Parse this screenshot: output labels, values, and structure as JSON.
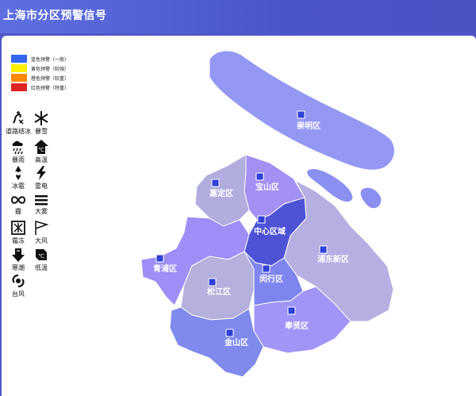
{
  "header": {
    "title": "上海市分区预警信号"
  },
  "legend": [
    {
      "label": "蓝色预警（一般）",
      "color": "#3366ee"
    },
    {
      "label": "黄色预警（较强）",
      "color": "#ffee00"
    },
    {
      "label": "橙色预警（较重）",
      "color": "#ff8800"
    },
    {
      "label": "红色预警（特重）",
      "color": "#dd2222"
    }
  ],
  "warning_types": {
    "road_ice": "道路结冰",
    "blizzard": "暴雪",
    "rainstorm": "暴雨",
    "heat": "高温",
    "hail": "冰雹",
    "thunder": "雷电",
    "haze": "霾",
    "fog": "大雾",
    "frost": "霜冻",
    "wind": "大风",
    "cold_wave": "寒潮",
    "low_temp": "低温",
    "typhoon": "台风"
  },
  "districts": {
    "chongming": {
      "name": "崇明区",
      "color": "#9498f3"
    },
    "jiading": {
      "name": "嘉定区",
      "color": "#b2addf"
    },
    "baoshan": {
      "name": "宝山区",
      "color": "#a48ff2"
    },
    "center": {
      "name": "中心区域",
      "color": "#4e53d6"
    },
    "pudong": {
      "name": "浦东新区",
      "color": "#b6b0e2"
    },
    "qingpu": {
      "name": "青浦区",
      "color": "#9d8ff5"
    },
    "songjiang": {
      "name": "松江区",
      "color": "#b5b0dc"
    },
    "minhang": {
      "name": "闵行区",
      "color": "#7f85ee"
    },
    "fengxian": {
      "name": "奉贤区",
      "color": "#a195f7"
    },
    "jinshan": {
      "name": "金山区",
      "color": "#7f8aec"
    }
  },
  "colors": {
    "header_bg": "#4b52c2",
    "islands": "#8b90f0",
    "marker": "#3040d8"
  }
}
